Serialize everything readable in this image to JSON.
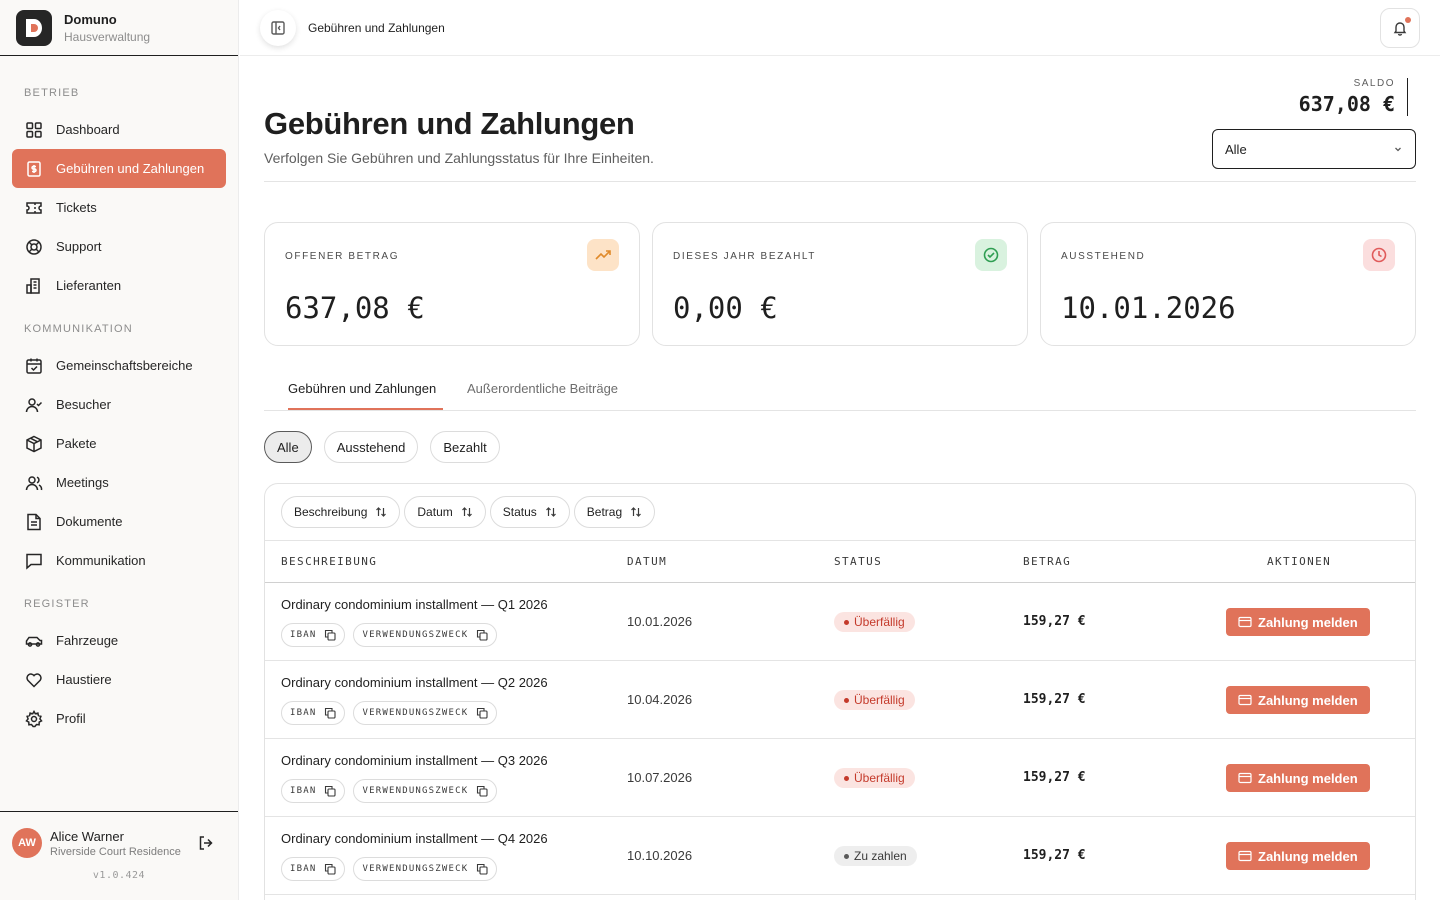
{
  "brand": {
    "name": "Domuno",
    "subtitle": "Hausverwaltung"
  },
  "sidebar": {
    "sections": [
      {
        "label": "BETRIEB",
        "items": [
          {
            "label": "Dashboard",
            "icon": "grid-icon"
          },
          {
            "label": "Gebühren und Zahlungen",
            "icon": "dollar-file-icon",
            "active": true
          },
          {
            "label": "Tickets",
            "icon": "ticket-icon"
          },
          {
            "label": "Support",
            "icon": "lifebuoy-icon"
          },
          {
            "label": "Lieferanten",
            "icon": "building-icon"
          }
        ]
      },
      {
        "label": "KOMMUNIKATION",
        "items": [
          {
            "label": "Gemeinschaftsbereiche",
            "icon": "calendar-check-icon"
          },
          {
            "label": "Besucher",
            "icon": "user-check-icon"
          },
          {
            "label": "Pakete",
            "icon": "package-icon"
          },
          {
            "label": "Meetings",
            "icon": "users-icon"
          },
          {
            "label": "Dokumente",
            "icon": "document-icon"
          },
          {
            "label": "Kommunikation",
            "icon": "message-icon"
          }
        ]
      },
      {
        "label": "REGISTER",
        "items": [
          {
            "label": "Fahrzeuge",
            "icon": "car-icon"
          },
          {
            "label": "Haustiere",
            "icon": "heart-icon"
          },
          {
            "label": "Profil",
            "icon": "gear-icon"
          }
        ]
      }
    ]
  },
  "user": {
    "initials": "AW",
    "name": "Alice Warner",
    "residence": "Riverside Court Residence"
  },
  "version": "v1.0.424",
  "header": {
    "breadcrumb": "Gebühren und Zahlungen"
  },
  "page": {
    "title": "Gebühren und Zahlungen",
    "subtitle": "Verfolgen Sie Gebühren und Zahlungsstatus für Ihre Einheiten.",
    "saldo_label": "SALDO",
    "saldo_value": "637,08 €",
    "filter_value": "Alle"
  },
  "cards": [
    {
      "label": "OFFENER BETRAG",
      "value": "637,08 €",
      "icon": "trending-up-icon",
      "icon_bg": "#fde3c7",
      "icon_color": "#e08a2a"
    },
    {
      "label": "DIESES JAHR BEZAHLT",
      "value": "0,00 €",
      "icon": "check-circle-icon",
      "icon_bg": "#d9f2df",
      "icon_color": "#2f9e52"
    },
    {
      "label": "AUSSTEHEND",
      "value": "10.01.2026",
      "icon": "clock-icon",
      "icon_bg": "#fbdede",
      "icon_color": "#e05a5a"
    }
  ],
  "tabs": [
    {
      "label": "Gebühren und Zahlungen",
      "active": true
    },
    {
      "label": "Außerordentliche Beiträge",
      "active": false
    }
  ],
  "status_filters": [
    {
      "label": "Alle",
      "active": true
    },
    {
      "label": "Ausstehend",
      "active": false
    },
    {
      "label": "Bezahlt",
      "active": false
    }
  ],
  "sort_buttons": [
    "Beschreibung",
    "Datum",
    "Status",
    "Betrag"
  ],
  "table": {
    "columns": [
      "BESCHREIBUNG",
      "DATUM",
      "STATUS",
      "BETRAG",
      "AKTIONEN"
    ],
    "chip_iban": "IBAN",
    "chip_purpose": "VERWENDUNGSZWECK",
    "action_label": "Zahlung melden",
    "rows": [
      {
        "description": "Ordinary condominium installment — Q1 2026",
        "date": "10.01.2026",
        "status": "Überfällig",
        "status_type": "overdue",
        "amount": "159,27 €"
      },
      {
        "description": "Ordinary condominium installment — Q2 2026",
        "date": "10.04.2026",
        "status": "Überfällig",
        "status_type": "overdue",
        "amount": "159,27 €"
      },
      {
        "description": "Ordinary condominium installment — Q3 2026",
        "date": "10.07.2026",
        "status": "Überfällig",
        "status_type": "overdue",
        "amount": "159,27 €"
      },
      {
        "description": "Ordinary condominium installment — Q4 2026",
        "date": "10.10.2026",
        "status": "Zu zahlen",
        "status_type": "due",
        "amount": "159,27 €"
      }
    ]
  },
  "colors": {
    "accent": "#e0735a",
    "text": "#1f1f1f"
  }
}
